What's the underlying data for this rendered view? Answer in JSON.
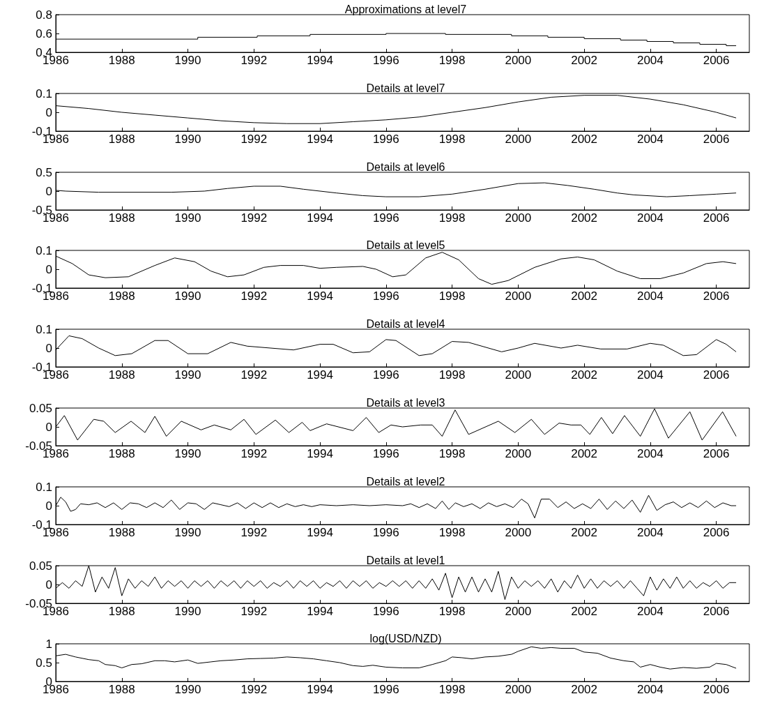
{
  "chart_data": [
    {
      "type": "step",
      "title": "Approximations at level7",
      "x": [
        1986,
        1990.3,
        1992.1,
        1993.7,
        1996.0,
        1997.8,
        1999.8,
        2000.9,
        2002.0,
        2003.1,
        2003.9,
        2004.7,
        2005.5,
        2006.3,
        2006.6
      ],
      "values": [
        0.54,
        0.56,
        0.575,
        0.59,
        0.6,
        0.59,
        0.575,
        0.56,
        0.545,
        0.53,
        0.515,
        0.5,
        0.485,
        0.47,
        0.47
      ],
      "color": "#000000",
      "xlim": [
        1986,
        2007
      ],
      "xticks": [
        1986,
        1988,
        1990,
        1992,
        1994,
        1996,
        1998,
        2000,
        2002,
        2004,
        2006
      ],
      "ylim": [
        0.4,
        0.8
      ],
      "yticks": [
        0.4,
        0.6,
        0.8
      ]
    },
    {
      "type": "line",
      "title": "Details at level7",
      "x": [
        1986,
        1987,
        1988,
        1989,
        1990,
        1991,
        1992,
        1993,
        1994,
        1995,
        1996,
        1997,
        1998,
        1999,
        2000,
        2001,
        2002,
        2003,
        2004,
        2005,
        2006,
        2006.6
      ],
      "values": [
        0.035,
        0.02,
        0.0,
        -0.015,
        -0.03,
        -0.045,
        -0.055,
        -0.06,
        -0.06,
        -0.05,
        -0.04,
        -0.025,
        0.0,
        0.025,
        0.055,
        0.08,
        0.09,
        0.09,
        0.07,
        0.04,
        0.0,
        -0.03
      ],
      "color": "#000000",
      "xlim": [
        1986,
        2007
      ],
      "xticks": [
        1986,
        1988,
        1990,
        1992,
        1994,
        1996,
        1998,
        2000,
        2002,
        2004,
        2006
      ],
      "ylim": [
        -0.1,
        0.1
      ],
      "yticks": [
        -0.1,
        0,
        0.1
      ]
    },
    {
      "type": "line",
      "title": "Details at level6",
      "x": [
        1986,
        1986.3,
        1987.3,
        1989.5,
        1990.5,
        1991.2,
        1992,
        1992.8,
        1993.5,
        1994.5,
        1995.3,
        1996,
        1997,
        1998,
        1999,
        2000,
        2000.8,
        2001.5,
        2002.3,
        2003,
        2003.5,
        2004.5,
        2005.2,
        2006,
        2006.6
      ],
      "values": [
        0.02,
        0,
        -0.03,
        -0.03,
        0.0,
        0.07,
        0.13,
        0.13,
        0.05,
        -0.05,
        -0.12,
        -0.15,
        -0.15,
        -0.08,
        0.05,
        0.2,
        0.22,
        0.15,
        0.05,
        -0.05,
        -0.1,
        -0.15,
        -0.12,
        -0.08,
        -0.05
      ],
      "color": "#000000",
      "xlim": [
        1986,
        2007
      ],
      "xticks": [
        1986,
        1988,
        1990,
        1992,
        1994,
        1996,
        1998,
        2000,
        2002,
        2004,
        2006
      ],
      "ylim": [
        -0.5,
        0.5
      ],
      "yticks": [
        -0.5,
        0,
        0.5
      ]
    },
    {
      "type": "line",
      "title": "Details at level5",
      "x": [
        1986,
        1986.5,
        1987,
        1987.5,
        1988.2,
        1989,
        1989.6,
        1990.2,
        1990.7,
        1991.2,
        1991.7,
        1992.3,
        1992.8,
        1993.5,
        1994,
        1994.5,
        1995.3,
        1995.7,
        1996.2,
        1996.6,
        1997.2,
        1997.7,
        1998.2,
        1998.8,
        1999.2,
        1999.7,
        2000.5,
        2001.3,
        2001.8,
        2002.3,
        2003,
        2003.7,
        2004.3,
        2005,
        2005.7,
        2006.2,
        2006.6
      ],
      "values": [
        0.07,
        0.03,
        -0.03,
        -0.045,
        -0.04,
        0.02,
        0.06,
        0.04,
        -0.01,
        -0.04,
        -0.03,
        0.01,
        0.02,
        0.02,
        0.005,
        0.01,
        0.015,
        0,
        -0.04,
        -0.03,
        0.06,
        0.09,
        0.05,
        -0.05,
        -0.08,
        -0.06,
        0.01,
        0.055,
        0.065,
        0.05,
        -0.01,
        -0.05,
        -0.05,
        -0.02,
        0.03,
        0.04,
        0.03
      ],
      "color": "#000000",
      "xlim": [
        1986,
        2007
      ],
      "xticks": [
        1986,
        1988,
        1990,
        1992,
        1994,
        1996,
        1998,
        2000,
        2002,
        2004,
        2006
      ],
      "ylim": [
        -0.1,
        0.1
      ],
      "yticks": [
        -0.1,
        0,
        0.1
      ]
    },
    {
      "type": "line",
      "title": "Details at level4",
      "x": [
        1986,
        1986.4,
        1986.8,
        1987.3,
        1987.8,
        1988.3,
        1989,
        1989.4,
        1990,
        1990.6,
        1991.3,
        1991.8,
        1992.5,
        1993.2,
        1994,
        1994.4,
        1995,
        1995.5,
        1996,
        1996.3,
        1997,
        1997.4,
        1998,
        1998.5,
        1999.5,
        2000,
        2000.5,
        2001.3,
        2001.8,
        2002.5,
        2003.3,
        2004,
        2004.4,
        2005,
        2005.4,
        2006,
        2006.3,
        2006.6
      ],
      "values": [
        -0.01,
        0.065,
        0.05,
        0,
        -0.04,
        -0.03,
        0.04,
        0.04,
        -0.03,
        -0.03,
        0.03,
        0.01,
        0,
        -0.01,
        0.02,
        0.02,
        -0.025,
        -0.02,
        0.045,
        0.04,
        -0.04,
        -0.03,
        0.035,
        0.03,
        -0.02,
        0.0,
        0.025,
        0,
        0.015,
        -0.005,
        -0.005,
        0.025,
        0.015,
        -0.04,
        -0.035,
        0.045,
        0.02,
        -0.02
      ],
      "color": "#000000",
      "xlim": [
        1986,
        2007
      ],
      "xticks": [
        1986,
        1988,
        1990,
        1992,
        1994,
        1996,
        1998,
        2000,
        2002,
        2004,
        2006
      ],
      "ylim": [
        -0.1,
        0.1
      ],
      "yticks": [
        -0.1,
        0,
        0.1
      ]
    },
    {
      "type": "line",
      "title": "Details at level3",
      "x": [
        1986,
        1986.26,
        1986.66,
        1987.15,
        1987.45,
        1987.8,
        1988.28,
        1988.7,
        1989.0,
        1989.35,
        1989.8,
        1990.4,
        1990.8,
        1991.3,
        1991.7,
        1992.06,
        1992.65,
        1993.06,
        1993.46,
        1993.7,
        1994.2,
        1995.0,
        1995.4,
        1995.78,
        1996.15,
        1996.5,
        1997.05,
        1997.4,
        1997.7,
        1998.09,
        1998.5,
        1999.4,
        1999.9,
        2000.4,
        2000.8,
        2001.24,
        2001.6,
        2001.9,
        2002.17,
        2002.52,
        2002.86,
        2003.22,
        2003.7,
        2004.13,
        2004.55,
        2005.2,
        2005.57,
        2006.19,
        2006.6
      ],
      "values": [
        0,
        0.03,
        -0.035,
        0.02,
        0.015,
        -0.015,
        0.015,
        -0.015,
        0.028,
        -0.025,
        0.015,
        -0.008,
        0.005,
        -0.008,
        0.02,
        -0.02,
        0.018,
        -0.015,
        0.012,
        -0.01,
        0.008,
        -0.01,
        0.025,
        -0.015,
        0.005,
        0,
        0.005,
        0.005,
        -0.025,
        0.045,
        -0.02,
        0.015,
        -0.015,
        0.02,
        -0.02,
        0.01,
        0.005,
        0.005,
        -0.02,
        0.025,
        -0.018,
        0.03,
        -0.025,
        0.048,
        -0.03,
        0.04,
        -0.035,
        0.04,
        -0.025
      ],
      "color": "#000000",
      "xlim": [
        1986,
        2007
      ],
      "xticks": [
        1986,
        1988,
        1990,
        1992,
        1994,
        1996,
        1998,
        2000,
        2002,
        2004,
        2006
      ],
      "ylim": [
        -0.05,
        0.05
      ],
      "yticks": [
        -0.05,
        0,
        0.05
      ]
    },
    {
      "type": "line",
      "title": "Details at level2",
      "x": [
        1986,
        1986.15,
        1986.3,
        1986.45,
        1986.6,
        1986.75,
        1987,
        1987.25,
        1987.5,
        1987.75,
        1988,
        1988.25,
        1988.5,
        1988.75,
        1989,
        1989.25,
        1989.5,
        1989.75,
        1990,
        1990.25,
        1990.5,
        1990.75,
        1991,
        1991.25,
        1991.5,
        1991.75,
        1992,
        1992.25,
        1992.5,
        1992.75,
        1993,
        1993.25,
        1993.5,
        1993.75,
        1994,
        1994.5,
        1995,
        1995.5,
        1996,
        1996.5,
        1996.75,
        1997,
        1997.25,
        1997.5,
        1997.7,
        1997.9,
        1998.1,
        1998.35,
        1998.6,
        1998.85,
        1999.1,
        1999.35,
        1999.6,
        1999.85,
        2000.1,
        2000.3,
        2000.5,
        2000.7,
        2000.95,
        2001.2,
        2001.45,
        2001.7,
        2001.95,
        2002.2,
        2002.45,
        2002.7,
        2002.95,
        2003.2,
        2003.45,
        2003.7,
        2003.95,
        2004.2,
        2004.45,
        2004.7,
        2004.95,
        2005.2,
        2005.45,
        2005.7,
        2005.95,
        2006.2,
        2006.45,
        2006.6
      ],
      "values": [
        0,
        0.045,
        0.02,
        -0.03,
        -0.02,
        0.01,
        0.005,
        0.015,
        -0.01,
        0.015,
        -0.02,
        0.015,
        0.01,
        -0.01,
        0.015,
        -0.01,
        0.03,
        -0.02,
        0.015,
        0.01,
        -0.02,
        0.015,
        0.005,
        -0.005,
        0.015,
        -0.015,
        0.015,
        -0.01,
        0.015,
        -0.01,
        0.01,
        -0.005,
        0.005,
        -0.005,
        0.005,
        0,
        0.005,
        0,
        0.005,
        0,
        0.01,
        -0.01,
        0.01,
        -0.015,
        0.025,
        -0.02,
        0.015,
        -0.005,
        0.01,
        -0.015,
        0.015,
        -0.005,
        0.01,
        -0.01,
        0.035,
        0.01,
        -0.065,
        0.035,
        0.035,
        -0.01,
        0.02,
        -0.015,
        0.01,
        -0.015,
        0.035,
        -0.02,
        0.025,
        -0.015,
        0.03,
        -0.035,
        0.055,
        -0.025,
        0.005,
        0.02,
        -0.01,
        0.015,
        -0.01,
        0.025,
        -0.01,
        0.015,
        0,
        0
      ],
      "color": "#000000",
      "xlim": [
        1986,
        2007
      ],
      "xticks": [
        1986,
        1988,
        1990,
        1992,
        1994,
        1996,
        1998,
        2000,
        2002,
        2004,
        2006
      ],
      "ylim": [
        -0.1,
        0.1
      ],
      "yticks": [
        -0.1,
        0,
        0.1
      ]
    },
    {
      "type": "line",
      "title": "Details at level1",
      "x": [
        1986,
        1986.2,
        1986.4,
        1986.6,
        1986.8,
        1987,
        1987.2,
        1987.4,
        1987.6,
        1987.8,
        1988,
        1988.2,
        1988.4,
        1988.6,
        1988.8,
        1989,
        1989.2,
        1989.4,
        1989.6,
        1989.8,
        1990,
        1990.2,
        1990.4,
        1990.6,
        1990.8,
        1991,
        1991.2,
        1991.4,
        1991.6,
        1991.8,
        1992,
        1992.2,
        1992.4,
        1992.6,
        1992.8,
        1993,
        1993.2,
        1993.4,
        1993.6,
        1993.8,
        1994,
        1994.2,
        1994.4,
        1994.6,
        1994.8,
        1995,
        1995.2,
        1995.4,
        1995.6,
        1995.8,
        1996,
        1996.2,
        1996.4,
        1996.6,
        1996.8,
        1997,
        1997.2,
        1997.4,
        1997.6,
        1997.8,
        1998,
        1998.2,
        1998.4,
        1998.6,
        1998.8,
        1999,
        1999.2,
        1999.4,
        1999.6,
        1999.8,
        2000,
        2000.2,
        2000.4,
        2000.6,
        2000.8,
        2001,
        2001.2,
        2001.4,
        2001.6,
        2001.8,
        2002,
        2002.2,
        2002.4,
        2002.6,
        2002.8,
        2003,
        2003.2,
        2003.4,
        2003.6,
        2003.8,
        2004,
        2004.2,
        2004.4,
        2004.6,
        2004.8,
        2005,
        2005.2,
        2005.4,
        2005.6,
        2005.8,
        2006,
        2006.2,
        2006.4,
        2006.6
      ],
      "values": [
        -0.01,
        0.005,
        -0.01,
        0.01,
        -0.005,
        0.05,
        -0.02,
        0.02,
        -0.01,
        0.045,
        -0.03,
        0.015,
        -0.01,
        0.01,
        -0.005,
        0.02,
        -0.01,
        0.01,
        -0.005,
        0.01,
        -0.01,
        0.01,
        -0.005,
        0.01,
        -0.01,
        0.01,
        -0.005,
        0.01,
        -0.01,
        0.01,
        -0.005,
        0.01,
        -0.01,
        0.005,
        -0.005,
        0.01,
        -0.01,
        0.01,
        -0.005,
        0.01,
        -0.01,
        0.005,
        -0.005,
        0.01,
        -0.01,
        0.01,
        -0.005,
        0.01,
        -0.01,
        0.005,
        -0.005,
        0.01,
        -0.005,
        0.01,
        -0.01,
        0.01,
        -0.01,
        0.015,
        -0.015,
        0.03,
        -0.035,
        0.02,
        -0.02,
        0.02,
        -0.02,
        0.015,
        -0.02,
        0.035,
        -0.04,
        0.02,
        -0.01,
        0.01,
        -0.005,
        0.01,
        -0.01,
        0.015,
        -0.02,
        0.01,
        -0.01,
        0.025,
        -0.01,
        0.015,
        -0.01,
        0.01,
        -0.005,
        0.01,
        -0.01,
        0.01,
        -0.01,
        -0.03,
        0.02,
        -0.015,
        0.015,
        -0.01,
        0.02,
        -0.01,
        0.01,
        -0.01,
        0.005,
        -0.005,
        0.01,
        -0.01,
        0.005,
        0.005
      ],
      "color": "#000000",
      "xlim": [
        1986,
        2007
      ],
      "xticks": [
        1986,
        1988,
        1990,
        1992,
        1994,
        1996,
        1998,
        2000,
        2002,
        2004,
        2006
      ],
      "ylim": [
        -0.05,
        0.05
      ],
      "yticks": [
        -0.05,
        0,
        0.05
      ]
    },
    {
      "type": "line",
      "title": "log(USD/NZD)",
      "x": [
        1986,
        1986.3,
        1986.6,
        1987,
        1987.3,
        1987.5,
        1987.8,
        1988,
        1988.3,
        1988.6,
        1989,
        1989.3,
        1989.6,
        1990,
        1990.3,
        1990.7,
        1991,
        1991.4,
        1991.8,
        1992.2,
        1992.6,
        1993,
        1993.4,
        1993.8,
        1994.2,
        1994.6,
        1995,
        1995.3,
        1995.6,
        1996,
        1996.5,
        1997,
        1997.4,
        1997.8,
        1998,
        1998.3,
        1998.6,
        1999,
        1999.4,
        1999.8,
        2000,
        2000.4,
        2000.7,
        2001,
        2001.3,
        2001.7,
        2002,
        2002.4,
        2002.8,
        2003.2,
        2003.5,
        2003.7,
        2004,
        2004.3,
        2004.6,
        2005,
        2005.4,
        2005.8,
        2006,
        2006.3,
        2006.6
      ],
      "values": [
        0.68,
        0.72,
        0.65,
        0.58,
        0.55,
        0.45,
        0.42,
        0.36,
        0.45,
        0.47,
        0.55,
        0.55,
        0.52,
        0.57,
        0.48,
        0.52,
        0.55,
        0.57,
        0.6,
        0.61,
        0.62,
        0.65,
        0.63,
        0.6,
        0.55,
        0.5,
        0.42,
        0.4,
        0.43,
        0.38,
        0.36,
        0.36,
        0.45,
        0.55,
        0.65,
        0.63,
        0.6,
        0.65,
        0.67,
        0.72,
        0.8,
        0.92,
        0.88,
        0.9,
        0.88,
        0.88,
        0.78,
        0.75,
        0.62,
        0.55,
        0.52,
        0.38,
        0.45,
        0.38,
        0.33,
        0.37,
        0.35,
        0.38,
        0.48,
        0.45,
        0.35
      ],
      "color": "#000000",
      "xlim": [
        1986,
        2007
      ],
      "xticks": [
        1986,
        1988,
        1990,
        1992,
        1994,
        1996,
        1998,
        2000,
        2002,
        2004,
        2006
      ],
      "ylim": [
        0,
        1
      ],
      "yticks": [
        0,
        0.5,
        1
      ]
    }
  ]
}
